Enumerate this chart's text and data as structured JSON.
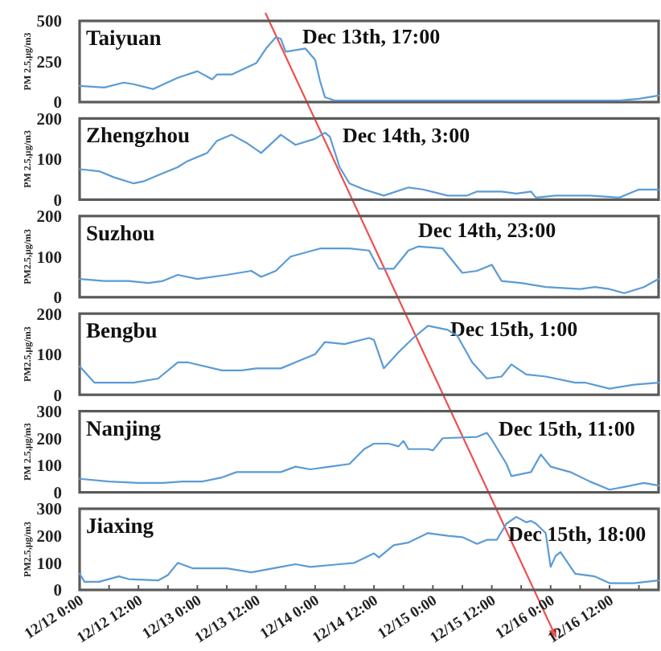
{
  "chart_data": [
    {
      "type": "line",
      "title": "Taiyuan",
      "ylabel": "PM 2.5,μg/m3",
      "annotations": [
        "Dec 13th, 17:00"
      ],
      "x": [
        "--12-12T00:00",
        "--12-12T05:00",
        "--12-12T09:00",
        "--12-12T11:00",
        "--12-12T15:00",
        "--12-12T20:00",
        "--12-13T00:00",
        "--12-13T03:00",
        "--12-13T04:00",
        "--12-13T07:00",
        "--12-13T12:00",
        "--12-13T14:00",
        "--12-13T16:00",
        "--12-13T17:00",
        "--12-13T18:00",
        "--12-13T20:00",
        "--12-13T22:00",
        "--12-14T00:00",
        "--12-14T01:00",
        "--12-14T02:00",
        "--12-14T04:00",
        "--12-14T07:00",
        "--12-14T12:00",
        "--12-14T17:00",
        "--12-14T22:00",
        "--12-15T03:00",
        "--12-15T08:00",
        "--12-15T13:00",
        "--12-15T18:00",
        "--12-15T23:00",
        "--12-16T04:00",
        "--12-16T09:00",
        "--12-16T14:00",
        "--12-16T18:00",
        "--12-16T22:00"
      ],
      "series": [
        {
          "color": "#5b9bd5",
          "values": [
            100,
            90,
            120,
            110,
            80,
            150,
            190,
            140,
            170,
            170,
            240,
            330,
            400,
            390,
            310,
            320,
            330,
            260,
            130,
            30,
            10,
            10,
            10,
            10,
            10,
            10,
            10,
            10,
            10,
            10,
            10,
            10,
            10,
            20,
            40
          ]
        }
      ],
      "xlim": [
        "--12-12T00:00",
        "--12-16T22:00"
      ],
      "ylim": [
        0,
        500
      ],
      "yticks": [
        0,
        250,
        500
      ],
      "tick_labels": "y"
    },
    {
      "type": "line",
      "title": "Zhengzhou",
      "ylabel": "PM 2.5,μg/m3",
      "annotations": [
        "Dec 14th, 3:00"
      ],
      "x": [
        "--12-12T00:00",
        "--12-12T04:00",
        "--12-12T07:00",
        "--12-12T11:00",
        "--12-12T13:00",
        "--12-12T16:00",
        "--12-12T20:00",
        "--12-12T22:00",
        "--12-13T02:00",
        "--12-13T04:00",
        "--12-13T07:00",
        "--12-13T10:00",
        "--12-13T13:00",
        "--12-13T17:00",
        "--12-13T20:00",
        "--12-14T00:00",
        "--12-14T02:00",
        "--12-14T03:00",
        "--12-14T05:00",
        "--12-14T07:00",
        "--12-14T10:00",
        "--12-14T14:00",
        "--12-14T19:00",
        "--12-14T22:00",
        "--12-15T03:00",
        "--12-15T07:00",
        "--12-15T09:00",
        "--12-15T14:00",
        "--12-15T17:00",
        "--12-15T20:00",
        "--12-15T21:00",
        "--12-16T01:00",
        "--12-16T08:00",
        "--12-16T14:00",
        "--12-16T16:00",
        "--12-16T18:00",
        "--12-16T22:00"
      ],
      "series": [
        {
          "color": "#5b9bd5",
          "values": [
            75,
            70,
            55,
            40,
            45,
            60,
            80,
            95,
            115,
            145,
            160,
            140,
            115,
            160,
            135,
            150,
            165,
            155,
            80,
            40,
            25,
            10,
            30,
            25,
            10,
            10,
            20,
            20,
            15,
            20,
            5,
            10,
            10,
            5,
            15,
            25,
            25
          ]
        }
      ],
      "xlim": [
        "--12-12T00:00",
        "--12-16T22:00"
      ],
      "ylim": [
        0,
        200
      ],
      "yticks": [
        0,
        100,
        200
      ],
      "tick_labels": "y"
    },
    {
      "type": "line",
      "title": "Suzhou",
      "ylabel": "PM2.5,μg/m3",
      "annotations": [
        "Dec 14th, 23:00"
      ],
      "x": [
        "--12-12T00:00",
        "--12-12T05:00",
        "--12-12T10:00",
        "--12-12T14:00",
        "--12-12T17:00",
        "--12-12T20:00",
        "--12-13T00:00",
        "--12-13T06:00",
        "--12-13T11:00",
        "--12-13T13:00",
        "--12-13T16:00",
        "--12-13T19:00",
        "--12-14T01:00",
        "--12-14T07:00",
        "--12-14T11:00",
        "--12-14T13:00",
        "--12-14T16:00",
        "--12-14T19:00",
        "--12-14T21:00",
        "--12-15T02:00",
        "--12-15T06:00",
        "--12-15T09:00",
        "--12-15T12:00",
        "--12-15T14:00",
        "--12-15T18:00",
        "--12-15T23:00",
        "--12-16T06:00",
        "--12-16T09:00",
        "--12-16T12:00",
        "--12-16T15:00",
        "--12-16T19:00",
        "--12-16T22:00"
      ],
      "series": [
        {
          "color": "#5b9bd5",
          "values": [
            45,
            40,
            40,
            35,
            40,
            55,
            45,
            55,
            65,
            50,
            65,
            100,
            120,
            120,
            115,
            70,
            70,
            115,
            125,
            120,
            60,
            65,
            80,
            40,
            35,
            25,
            20,
            25,
            20,
            10,
            25,
            45
          ]
        }
      ],
      "xlim": [
        "--12-12T00:00",
        "--12-16T22:00"
      ],
      "ylim": [
        0,
        200
      ],
      "yticks": [
        0,
        100,
        200
      ],
      "tick_labels": "y"
    },
    {
      "type": "line",
      "title": "Bengbu",
      "ylabel": "PM2.5,μg/m3",
      "annotations": [
        "Dec 15th, 1:00"
      ],
      "x": [
        "--12-12T00:00",
        "--12-12T03:00",
        "--12-12T07:00",
        "--12-12T11:00",
        "--12-12T16:00",
        "--12-12T20:00",
        "--12-12T22:00",
        "--12-13T05:00",
        "--12-13T09:00",
        "--12-13T12:00",
        "--12-13T17:00",
        "--12-13T21:00",
        "--12-14T00:00",
        "--12-14T02:00",
        "--12-14T06:00",
        "--12-14T11:00",
        "--12-14T12:00",
        "--12-14T14:00",
        "--12-14T17:00",
        "--12-14T20:00",
        "--12-14T23:00",
        "--12-15T03:00",
        "--12-15T05:00",
        "--12-15T08:00",
        "--12-15T11:00",
        "--12-15T14:00",
        "--12-15T16:00",
        "--12-15T19:00",
        "--12-15T23:00",
        "--12-16T05:00",
        "--12-16T07:00",
        "--12-16T12:00",
        "--12-16T17:00",
        "--12-16T22:00"
      ],
      "series": [
        {
          "color": "#5b9bd5",
          "values": [
            70,
            30,
            30,
            30,
            40,
            80,
            80,
            60,
            60,
            65,
            65,
            85,
            100,
            130,
            125,
            140,
            135,
            65,
            105,
            140,
            170,
            160,
            145,
            80,
            40,
            45,
            75,
            50,
            45,
            30,
            30,
            15,
            25,
            30
          ]
        }
      ],
      "xlim": [
        "--12-12T00:00",
        "--12-16T22:00"
      ],
      "ylim": [
        0,
        200
      ],
      "yticks": [
        0,
        100,
        200
      ],
      "tick_labels": "y"
    },
    {
      "type": "line",
      "title": "Nanjing",
      "ylabel": "PM 2.5,μg/m3",
      "annotations": [
        "Dec 15th, 11:00"
      ],
      "x": [
        "--12-12T00:00",
        "--12-12T06:00",
        "--12-12T12:00",
        "--12-12T17:00",
        "--12-12T21:00",
        "--12-13T01:00",
        "--12-13T05:00",
        "--12-13T08:00",
        "--12-13T12:00",
        "--12-13T17:00",
        "--12-13T20:00",
        "--12-13T23:00",
        "--12-14T03:00",
        "--12-14T07:00",
        "--12-14T10:00",
        "--12-14T12:00",
        "--12-14T14:00",
        "--12-14T15:00",
        "--12-14T17:00",
        "--12-14T18:00",
        "--12-14T19:00",
        "--12-14T23:00",
        "--12-15T00:00",
        "--12-15T02:00",
        "--12-15T09:00",
        "--12-15T11:00",
        "--12-15T12:00",
        "--12-15T15:00",
        "--12-15T16:00",
        "--12-15T20:00",
        "--12-15T22:00",
        "--12-16T00:00",
        "--12-16T04:00",
        "--12-16T08:00",
        "--12-16T12:00",
        "--12-16T15:00",
        "--12-16T19:00",
        "--12-16T22:00"
      ],
      "series": [
        {
          "color": "#5b9bd5",
          "values": [
            50,
            40,
            35,
            35,
            40,
            40,
            55,
            75,
            75,
            75,
            95,
            85,
            95,
            105,
            160,
            180,
            180,
            180,
            170,
            190,
            160,
            160,
            155,
            200,
            205,
            220,
            195,
            105,
            60,
            75,
            140,
            95,
            75,
            40,
            10,
            20,
            35,
            25
          ]
        }
      ],
      "xlim": [
        "--12-12T00:00",
        "--12-16T22:00"
      ],
      "ylim": [
        0,
        300
      ],
      "yticks": [
        0,
        100,
        200,
        300
      ],
      "tick_labels": "y"
    },
    {
      "type": "line",
      "title": "Jiaxing",
      "ylabel": "PM2.5,μg/m3",
      "annotations": [
        "Dec 15th, 18:00"
      ],
      "x": [
        "--12-12T00:00",
        "--12-12T01:00",
        "--12-12T04:00",
        "--12-12T08:00",
        "--12-12T10:00",
        "--12-12T16:00",
        "--12-12T18:00",
        "--12-12T20:00",
        "--12-12T23:00",
        "--12-13T06:00",
        "--12-13T11:00",
        "--12-13T17:00",
        "--12-13T20:00",
        "--12-13T23:00",
        "--12-14T05:00",
        "--12-14T08:00",
        "--12-14T12:00",
        "--12-14T13:00",
        "--12-14T16:00",
        "--12-14T19:00",
        "--12-14T23:00",
        "--12-15T03:00",
        "--12-15T06:00",
        "--12-15T09:00",
        "--12-15T11:00",
        "--12-15T13:00",
        "--12-15T15:00",
        "--12-15T17:00",
        "--12-15T19:00",
        "--12-15T20:00",
        "--12-15T21:00",
        "--12-15T23:00",
        "--12-16T00:00",
        "--12-16T01:00",
        "--12-16T02:00",
        "--12-16T05:00",
        "--12-16T09:00",
        "--12-16T12:00",
        "--12-16T17:00",
        "--12-16T22:00"
      ],
      "series": [
        {
          "color": "#5b9bd5",
          "values": [
            60,
            30,
            30,
            50,
            40,
            35,
            55,
            100,
            80,
            80,
            65,
            85,
            95,
            85,
            95,
            100,
            135,
            120,
            165,
            175,
            210,
            200,
            195,
            170,
            185,
            185,
            245,
            270,
            250,
            255,
            245,
            210,
            85,
            125,
            140,
            60,
            50,
            25,
            25,
            35
          ]
        }
      ],
      "xlim": [
        "--12-12T00:00",
        "--12-16T22:00"
      ],
      "ylim": [
        0,
        300
      ],
      "yticks": [
        0,
        100,
        200,
        300
      ],
      "xticks": [
        {
          "value": "--12-12T00:00",
          "label": "12/12 0:00"
        },
        {
          "value": "--12-12T06:00",
          "label": null
        },
        {
          "value": "--12-12T12:00",
          "label": "12/12 12:00"
        },
        {
          "value": "--12-12T18:00",
          "label": null
        },
        {
          "value": "--12-13T00:00",
          "label": "12/13 0:00"
        },
        {
          "value": "--12-13T06:00",
          "label": null
        },
        {
          "value": "--12-13T12:00",
          "label": "12/13 12:00"
        },
        {
          "value": "--12-13T18:00",
          "label": null
        },
        {
          "value": "--12-14T00:00",
          "label": "12/14 0:00"
        },
        {
          "value": "--12-14T06:00",
          "label": null
        },
        {
          "value": "--12-14T12:00",
          "label": "12/14 12:00"
        },
        {
          "value": "--12-14T18:00",
          "label": null
        },
        {
          "value": "--12-15T00:00",
          "label": "12/15 0:00"
        },
        {
          "value": "--12-15T06:00",
          "label": null
        },
        {
          "value": "--12-15T12:00",
          "label": "12/15 12:00"
        },
        {
          "value": "--12-15T18:00",
          "label": null
        },
        {
          "value": "--12-16T00:00",
          "label": "12/16 0:00"
        },
        {
          "value": "--12-16T06:00",
          "label": null
        },
        {
          "value": "--12-16T12:00",
          "label": "12/16 12:00"
        },
        {
          "value": "--12-16T18:00",
          "label": null
        }
      ]
    }
  ]
}
